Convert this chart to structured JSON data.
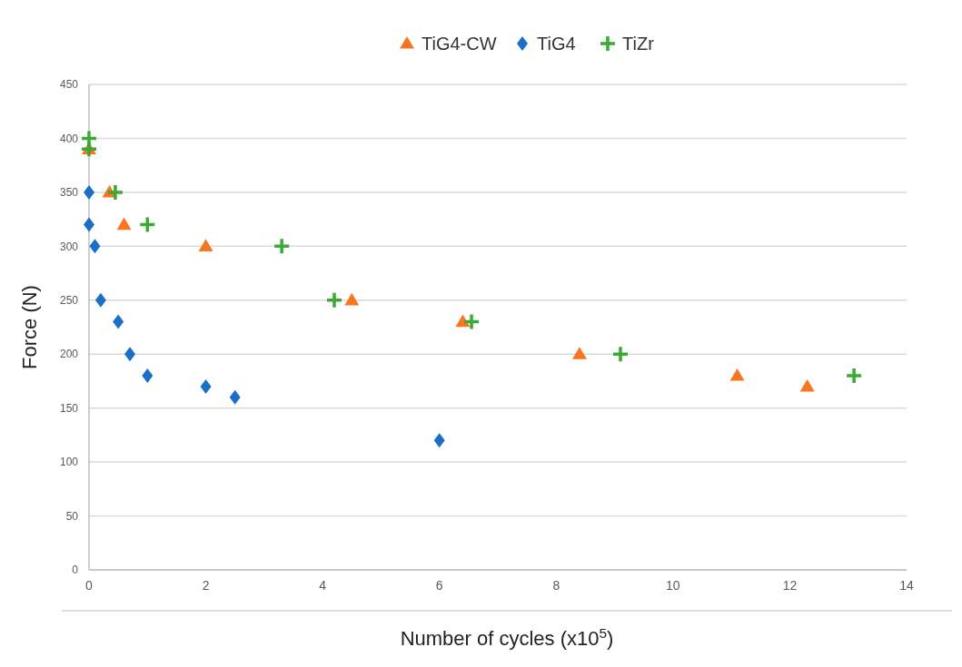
{
  "chart_data": {
    "type": "scatter",
    "xlabel": "Number of cycles (x10$^{5}$)",
    "ylabel": "Force (N)",
    "xlim": [
      0,
      14
    ],
    "xticks": [
      0,
      2,
      4,
      6,
      8,
      10,
      12,
      14
    ],
    "ylim": [
      0,
      450
    ],
    "yticks": [
      0,
      50,
      100,
      150,
      200,
      250,
      300,
      350,
      400,
      450
    ],
    "grid": "y",
    "legend": "top",
    "series": [
      {
        "name": "TiG4-CW",
        "color": "#f7761f",
        "marker": "triangle",
        "x": [
          0,
          0.35,
          0.6,
          2,
          4.5,
          6.4,
          8.4,
          11.1,
          12.3
        ],
        "values": [
          390,
          350,
          320,
          300,
          250,
          230,
          200,
          180,
          170
        ]
      },
      {
        "name": "TiG4",
        "color": "#1a6fc7",
        "marker": "diamond",
        "x": [
          0,
          0,
          0.1,
          0.2,
          0.5,
          0.7,
          1,
          2,
          2.5,
          6
        ],
        "values": [
          350,
          320,
          300,
          250,
          230,
          200,
          180,
          170,
          160,
          120
        ]
      },
      {
        "name": "TiZr",
        "color": "#3aaa35",
        "marker": "cross",
        "x": [
          0,
          0,
          0.45,
          1,
          3.3,
          4.2,
          6.55,
          9.1,
          13.1
        ],
        "values": [
          400,
          390,
          350,
          320,
          300,
          250,
          230,
          200,
          180
        ]
      }
    ]
  }
}
